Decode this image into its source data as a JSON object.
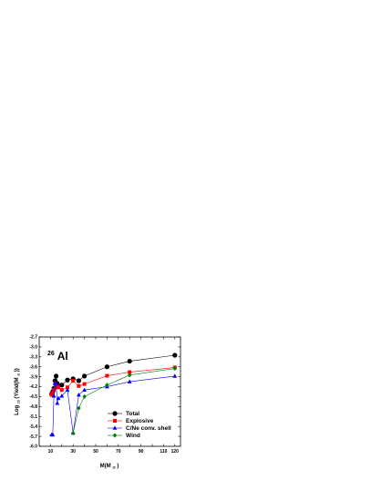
{
  "chart_data": {
    "type": "line",
    "annotation": {
      "superscript": "26",
      "text": "Al"
    },
    "xlabel": "M(M",
    "xlabel_sub": "⊙",
    "xlabel_end": ")",
    "ylabel": "Log",
    "ylabel_sub": "10",
    "ylabel_end": "(Yield(M",
    "ylabel_sub2": "⊙",
    "ylabel_end2": "))",
    "xlim": [
      0,
      125
    ],
    "ylim": [
      -6.0,
      -2.7
    ],
    "xticks": [
      "10",
      "20",
      "30",
      "40",
      "50",
      "60",
      "70",
      "80",
      "90",
      "100",
      "110",
      "120"
    ],
    "xtick_values": [
      10,
      20,
      30,
      40,
      50,
      60,
      70,
      80,
      90,
      100,
      110,
      120
    ],
    "yticks": [
      "-2.7",
      "-3.0",
      "-3.3",
      "-3.6",
      "-3.9",
      "-4.2",
      "-4.5",
      "-4.8",
      "-5.1",
      "-5.4",
      "-5.7",
      "-6.0"
    ],
    "ytick_values": [
      -2.7,
      -3.0,
      -3.3,
      -3.6,
      -3.9,
      -4.2,
      -4.5,
      -4.8,
      -5.1,
      -5.4,
      -5.7,
      -6.0
    ],
    "legend_position": "bottom-right",
    "series": [
      {
        "name": "Total",
        "color": "#000000",
        "marker": "circle",
        "x": [
          11,
          12,
          13,
          14,
          15,
          16,
          17,
          20,
          25,
          30,
          35,
          40,
          60,
          80,
          120
        ],
        "y": [
          -4.42,
          -4.35,
          -4.25,
          -4.02,
          -3.88,
          -4.1,
          -4.18,
          -4.15,
          -4.0,
          -3.96,
          -4.02,
          -3.88,
          -3.6,
          -3.43,
          -3.25
        ]
      },
      {
        "name": "Explosive",
        "color": "#ff0000",
        "marker": "square",
        "x": [
          11,
          12,
          13,
          14,
          15,
          16,
          17,
          20,
          25,
          30,
          35,
          40,
          60,
          80,
          120
        ],
        "y": [
          -4.45,
          -4.4,
          -4.3,
          -4.1,
          -4.18,
          -4.2,
          -4.22,
          -4.3,
          -4.22,
          -4.02,
          -4.18,
          -4.12,
          -3.87,
          -3.76,
          -3.62
        ]
      },
      {
        "name": "C/Ne conv. shell",
        "color": "#0000ff",
        "marker": "triangle",
        "x": [
          11,
          12,
          13,
          14,
          15,
          16,
          17,
          20,
          25,
          30,
          35,
          40,
          60,
          80,
          120
        ],
        "y": [
          -5.65,
          -5.65,
          -4.48,
          -4.1,
          -4.12,
          -4.7,
          -4.55,
          -4.48,
          -4.3,
          -5.6,
          -4.45,
          -4.3,
          -4.2,
          -4.05,
          -3.88
        ]
      },
      {
        "name": "Wind",
        "color": "#008000",
        "marker": "diamond",
        "x": [
          30,
          35,
          40,
          60,
          80,
          120
        ],
        "y": [
          -5.6,
          -4.85,
          -4.5,
          -4.15,
          -3.85,
          -3.65
        ]
      }
    ]
  }
}
